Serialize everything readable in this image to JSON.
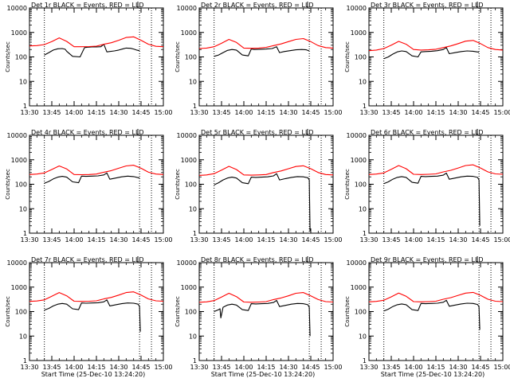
{
  "figure": {
    "shared_xlabel": "Start Time (25-Dec-10 13:24:20)",
    "shared_ylabel": "Counts/sec",
    "x_tick_labels": [
      "13:30",
      "13:45",
      "14:00",
      "14:15",
      "14:30",
      "14:45",
      "15:00"
    ],
    "y_tick_labels": [
      "1",
      "10",
      "100",
      "1000",
      "10000"
    ],
    "colors": {
      "events": "#000000",
      "lld": "#ff0000",
      "axes": "#000000"
    }
  },
  "chart_data": [
    {
      "type": "line",
      "title": "Det 1r BLACK = Events, RED = LLD",
      "xlabel": "",
      "ylabel": "Counts/sec",
      "x_units": "minutes after 13:30",
      "xlim": [
        0,
        90
      ],
      "ylim": [
        1,
        10000
      ],
      "y_scale": "log",
      "vlines": [
        10,
        74,
        82
      ],
      "series": [
        {
          "name": "Events",
          "color": "#000000",
          "x": [
            10,
            13,
            16,
            19,
            22,
            24,
            25,
            29,
            34,
            37,
            39,
            42,
            45,
            48,
            50,
            52,
            57,
            60,
            63,
            65,
            68,
            70,
            72,
            74
          ],
          "values": [
            120,
            150,
            190,
            215,
            220,
            205,
            170,
            105,
            100,
            240,
            250,
            255,
            255,
            260,
            330,
            160,
            175,
            190,
            215,
            230,
            225,
            210,
            190,
            180
          ]
        },
        {
          "name": "LLD",
          "color": "#ff0000",
          "x": [
            0,
            5,
            10,
            15,
            20,
            25,
            30,
            35,
            40,
            45,
            50,
            55,
            60,
            65,
            70,
            75,
            80,
            85,
            90
          ],
          "values": [
            280,
            290,
            320,
            420,
            600,
            430,
            260,
            260,
            265,
            275,
            330,
            380,
            480,
            620,
            660,
            480,
            330,
            270,
            260
          ]
        }
      ]
    },
    {
      "type": "line",
      "title": "Det 2r BLACK = Events, RED = LLD",
      "xlabel": "",
      "ylabel": "Counts/sec",
      "x_units": "minutes after 13:30",
      "xlim": [
        0,
        90
      ],
      "ylim": [
        1,
        10000
      ],
      "y_scale": "log",
      "vlines": [
        10,
        74,
        82
      ],
      "series": [
        {
          "name": "Events",
          "color": "#000000",
          "x": [
            10,
            13,
            16,
            19,
            22,
            25,
            29,
            33,
            35,
            37,
            41,
            45,
            49,
            52,
            54,
            57,
            61,
            65,
            69,
            72,
            74
          ],
          "values": [
            105,
            120,
            150,
            185,
            200,
            190,
            120,
            110,
            210,
            200,
            205,
            210,
            220,
            260,
            150,
            165,
            180,
            195,
            200,
            195,
            175
          ]
        },
        {
          "name": "LLD",
          "color": "#ff0000",
          "x": [
            0,
            5,
            10,
            15,
            20,
            25,
            30,
            35,
            40,
            45,
            50,
            55,
            60,
            65,
            70,
            75,
            80,
            85,
            90
          ],
          "values": [
            220,
            230,
            260,
            360,
            520,
            390,
            230,
            225,
            230,
            245,
            290,
            340,
            420,
            520,
            560,
            420,
            290,
            240,
            230
          ]
        }
      ]
    },
    {
      "type": "line",
      "title": "Det 3r BLACK = Events, RED = LLD",
      "xlabel": "",
      "ylabel": "Counts/sec",
      "x_units": "minutes after 13:30",
      "xlim": [
        0,
        90
      ],
      "ylim": [
        1,
        10000
      ],
      "y_scale": "log",
      "vlines": [
        10,
        74,
        82
      ],
      "series": [
        {
          "name": "Events",
          "color": "#000000",
          "x": [
            10,
            13,
            16,
            19,
            22,
            25,
            29,
            33,
            35,
            38,
            42,
            46,
            50,
            52,
            54,
            58,
            62,
            66,
            70,
            74
          ],
          "values": [
            85,
            100,
            130,
            160,
            175,
            165,
            110,
            100,
            160,
            165,
            170,
            180,
            200,
            240,
            135,
            150,
            165,
            175,
            170,
            155
          ]
        },
        {
          "name": "LLD",
          "color": "#ff0000",
          "x": [
            0,
            5,
            10,
            15,
            20,
            25,
            30,
            35,
            40,
            45,
            50,
            55,
            60,
            65,
            70,
            75,
            80,
            85,
            90
          ],
          "values": [
            180,
            190,
            220,
            300,
            430,
            330,
            200,
            190,
            195,
            205,
            240,
            280,
            350,
            440,
            470,
            350,
            240,
            200,
            190
          ]
        }
      ]
    },
    {
      "type": "line",
      "title": "Det 4r BLACK = Events, RED = LLD",
      "xlabel": "",
      "ylabel": "Counts/sec",
      "x_units": "minutes after 13:30",
      "xlim": [
        0,
        90
      ],
      "ylim": [
        1,
        10000
      ],
      "y_scale": "log",
      "vlines": [
        10,
        74,
        82
      ],
      "series": [
        {
          "name": "Events",
          "color": "#000000",
          "x": [
            10,
            13,
            16,
            19,
            22,
            25,
            29,
            33,
            35,
            38,
            42,
            46,
            50,
            52,
            54,
            58,
            62,
            66,
            70,
            74
          ],
          "values": [
            110,
            130,
            165,
            195,
            210,
            195,
            125,
            115,
            215,
            210,
            215,
            220,
            240,
            290,
            160,
            180,
            200,
            215,
            205,
            180
          ]
        },
        {
          "name": "LLD",
          "color": "#ff0000",
          "x": [
            0,
            5,
            10,
            15,
            20,
            25,
            30,
            35,
            40,
            45,
            50,
            55,
            60,
            65,
            70,
            75,
            80,
            85,
            90
          ],
          "values": [
            250,
            260,
            290,
            400,
            560,
            420,
            250,
            245,
            250,
            260,
            310,
            360,
            450,
            560,
            600,
            450,
            310,
            260,
            250
          ]
        }
      ]
    },
    {
      "type": "line",
      "title": "Det 5r BLACK = Events, RED = LLD",
      "xlabel": "",
      "ylabel": "Counts/sec",
      "x_units": "minutes after 13:30",
      "xlim": [
        0,
        90
      ],
      "ylim": [
        1,
        10000
      ],
      "y_scale": "log",
      "vlines": [
        10,
        74,
        82
      ],
      "series": [
        {
          "name": "Events",
          "color": "#000000",
          "x": [
            10,
            13,
            16,
            19,
            22,
            25,
            29,
            33,
            35,
            38,
            42,
            46,
            50,
            52,
            54,
            58,
            62,
            66,
            70,
            73,
            74,
            74.5
          ],
          "values": [
            95,
            115,
            150,
            180,
            195,
            180,
            115,
            105,
            195,
            190,
            195,
            200,
            220,
            270,
            150,
            170,
            190,
            205,
            200,
            185,
            150,
            1.2
          ]
        },
        {
          "name": "LLD",
          "color": "#ff0000",
          "x": [
            0,
            5,
            10,
            15,
            20,
            25,
            30,
            35,
            40,
            45,
            50,
            55,
            60,
            65,
            70,
            75,
            80,
            85,
            90
          ],
          "values": [
            230,
            240,
            270,
            380,
            540,
            400,
            240,
            235,
            240,
            250,
            300,
            350,
            430,
            530,
            570,
            430,
            300,
            250,
            240
          ]
        }
      ]
    },
    {
      "type": "line",
      "title": "Det 6r BLACK = Events, RED = LLD",
      "xlabel": "",
      "ylabel": "Counts/sec",
      "x_units": "minutes after 13:30",
      "xlim": [
        0,
        90
      ],
      "ylim": [
        1,
        10000
      ],
      "y_scale": "log",
      "vlines": [
        10,
        74,
        82
      ],
      "series": [
        {
          "name": "Events",
          "color": "#000000",
          "x": [
            10,
            13,
            16,
            19,
            22,
            25,
            29,
            33,
            35,
            38,
            42,
            46,
            50,
            52,
            54,
            58,
            62,
            66,
            70,
            73,
            74,
            74.5
          ],
          "values": [
            105,
            125,
            160,
            190,
            205,
            190,
            120,
            110,
            210,
            205,
            210,
            215,
            235,
            285,
            160,
            180,
            200,
            215,
            210,
            190,
            150,
            2
          ]
        },
        {
          "name": "LLD",
          "color": "#ff0000",
          "x": [
            0,
            5,
            10,
            15,
            20,
            25,
            30,
            35,
            40,
            45,
            50,
            55,
            60,
            65,
            70,
            75,
            80,
            85,
            90
          ],
          "values": [
            250,
            260,
            290,
            410,
            580,
            430,
            255,
            250,
            255,
            265,
            320,
            370,
            460,
            580,
            620,
            460,
            320,
            265,
            255
          ]
        }
      ]
    },
    {
      "type": "line",
      "title": "Det 7r BLACK = Events, RED = LLD",
      "xlabel": "Start Time (25-Dec-10 13:24:20)",
      "ylabel": "Counts/sec",
      "x_units": "minutes after 13:30",
      "xlim": [
        0,
        90
      ],
      "ylim": [
        1,
        10000
      ],
      "y_scale": "log",
      "vlines": [
        10,
        74,
        82
      ],
      "series": [
        {
          "name": "Events",
          "color": "#000000",
          "x": [
            10,
            13,
            16,
            19,
            22,
            25,
            29,
            33,
            35,
            38,
            42,
            46,
            50,
            52,
            54,
            58,
            62,
            66,
            70,
            73,
            74,
            74.5
          ],
          "values": [
            115,
            135,
            170,
            200,
            215,
            200,
            130,
            120,
            225,
            220,
            225,
            230,
            250,
            300,
            170,
            190,
            210,
            225,
            220,
            200,
            160,
            15
          ]
        },
        {
          "name": "LLD",
          "color": "#ff0000",
          "x": [
            0,
            5,
            10,
            15,
            20,
            25,
            30,
            35,
            40,
            45,
            50,
            55,
            60,
            65,
            70,
            75,
            80,
            85,
            90
          ],
          "values": [
            260,
            270,
            300,
            420,
            600,
            440,
            265,
            260,
            265,
            275,
            330,
            380,
            470,
            600,
            640,
            470,
            330,
            275,
            265
          ]
        }
      ]
    },
    {
      "type": "line",
      "title": "Det 8r BLACK = Events, RED = LLD",
      "xlabel": "Start Time (25-Dec-10 13:24:20)",
      "ylabel": "Counts/sec",
      "x_units": "minutes after 13:30",
      "xlim": [
        0,
        90
      ],
      "ylim": [
        1,
        10000
      ],
      "y_scale": "log",
      "vlines": [
        10,
        74,
        82
      ],
      "series": [
        {
          "name": "Events",
          "color": "#000000",
          "x": [
            10,
            13,
            14,
            14.5,
            16,
            19,
            22,
            25,
            29,
            33,
            35,
            38,
            42,
            46,
            50,
            52,
            54,
            58,
            62,
            66,
            70,
            73,
            74,
            74.5
          ],
          "values": [
            100,
            120,
            130,
            55,
            150,
            185,
            200,
            185,
            120,
            110,
            210,
            205,
            210,
            215,
            235,
            285,
            160,
            180,
            200,
            215,
            210,
            190,
            150,
            10
          ]
        },
        {
          "name": "LLD",
          "color": "#ff0000",
          "x": [
            0,
            5,
            10,
            15,
            20,
            25,
            30,
            35,
            40,
            45,
            50,
            55,
            60,
            65,
            70,
            75,
            80,
            85,
            90
          ],
          "values": [
            240,
            250,
            280,
            390,
            560,
            410,
            245,
            240,
            245,
            255,
            310,
            360,
            440,
            560,
            600,
            440,
            310,
            255,
            245
          ]
        }
      ]
    },
    {
      "type": "line",
      "title": "Det 9r BLACK = Events, RED = LLD",
      "xlabel": "Start Time (25-Dec-10 13:24:20)",
      "ylabel": "Counts/sec",
      "x_units": "minutes after 13:30",
      "xlim": [
        0,
        90
      ],
      "ylim": [
        1,
        10000
      ],
      "y_scale": "log",
      "vlines": [
        10,
        74,
        82
      ],
      "series": [
        {
          "name": "Events",
          "color": "#000000",
          "x": [
            10,
            13,
            16,
            19,
            22,
            25,
            29,
            33,
            35,
            38,
            42,
            46,
            50,
            52,
            54,
            58,
            62,
            66,
            70,
            73,
            74,
            74.5
          ],
          "values": [
            105,
            125,
            160,
            190,
            205,
            190,
            120,
            110,
            215,
            210,
            215,
            220,
            240,
            290,
            165,
            185,
            205,
            220,
            215,
            195,
            155,
            18
          ]
        },
        {
          "name": "LLD",
          "color": "#ff0000",
          "x": [
            0,
            5,
            10,
            15,
            20,
            25,
            30,
            35,
            40,
            45,
            50,
            55,
            60,
            65,
            70,
            75,
            80,
            85,
            90
          ],
          "values": [
            250,
            260,
            290,
            400,
            570,
            420,
            255,
            250,
            255,
            265,
            320,
            370,
            460,
            570,
            610,
            460,
            320,
            265,
            255
          ]
        }
      ]
    }
  ]
}
